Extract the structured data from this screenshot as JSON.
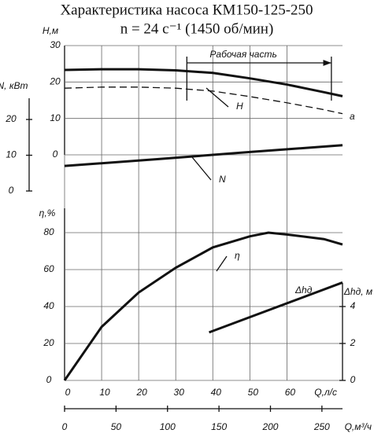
{
  "chart_data": {
    "type": "line",
    "title": "Характеристика насоса КМ150-125-250",
    "subtitle": "n = 24 с⁻¹  (1450 об/мин)",
    "xlabel": "Q,л/с",
    "xlim": [
      0,
      75
    ],
    "xticks": [
      0,
      10,
      20,
      30,
      40,
      50,
      60
    ],
    "x2label": "Q,м³/ч",
    "x2lim": [
      0,
      270
    ],
    "x2ticks": [
      0,
      50,
      100,
      150,
      200,
      250
    ],
    "grid": true,
    "panels": [
      {
        "ylabel": "Н,м",
        "ylim": [
          0,
          30
        ],
        "yticks": [
          0,
          10,
          20,
          30
        ],
        "annotation": "Рабочая часть",
        "annotation_range": [
          33,
          72
        ],
        "series": [
          {
            "name": "H",
            "color": "#111111",
            "dash": false,
            "x": [
              0,
              10,
              20,
              30,
              40,
              50,
              60,
              70,
              75
            ],
            "values": [
              23.3,
              23.5,
              23.5,
              23.2,
              22.5,
              21.0,
              19.3,
              17.2,
              16.1
            ]
          },
          {
            "name": "a",
            "color": "#111111",
            "dash": true,
            "x": [
              0,
              10,
              20,
              30,
              40,
              50,
              60,
              70,
              75
            ],
            "values": [
              18.3,
              18.6,
              18.6,
              18.3,
              17.5,
              16.0,
              14.3,
              12.4,
              11.3
            ]
          }
        ]
      },
      {
        "ylabel": "N, кВт",
        "ylim": [
          0,
          20
        ],
        "yticks": [
          0,
          10,
          20
        ],
        "series": [
          {
            "name": "N",
            "color": "#111111",
            "dash": false,
            "x": [
              0,
              25,
              50,
              75
            ],
            "values": [
              7.0,
              8.9,
              10.9,
              12.8
            ]
          }
        ]
      },
      {
        "ylabel": "η,%",
        "ylim": [
          0,
          80
        ],
        "yticks": [
          0,
          20,
          40,
          60,
          80
        ],
        "series": [
          {
            "name": "η",
            "color": "#111111",
            "dash": false,
            "x": [
              0,
              10,
              20,
              30,
              40,
              50,
              55,
              60,
              70,
              75
            ],
            "values": [
              0,
              29,
              47.6,
              61,
              72,
              78,
              80,
              79,
              76.5,
              73.6
            ]
          }
        ]
      },
      {
        "ylabel": "Δhд, м",
        "ylim": [
          0,
          6
        ],
        "yticks": [
          0,
          2,
          4
        ],
        "series": [
          {
            "name": "Δhд",
            "color": "#111111",
            "dash": false,
            "x": [
              39,
              75
            ],
            "values": [
              2.6,
              5.3
            ]
          }
        ]
      }
    ]
  }
}
